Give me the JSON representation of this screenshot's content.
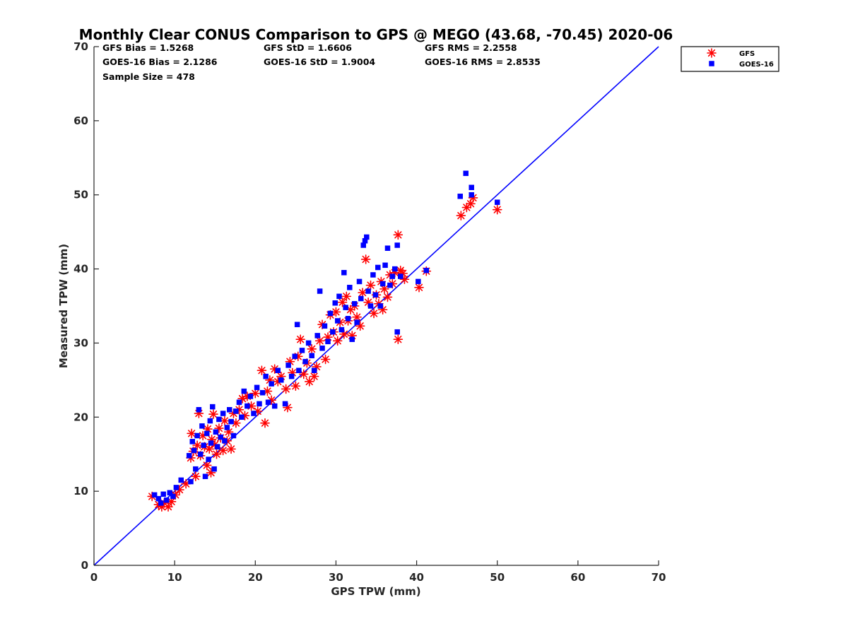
{
  "chart_data": {
    "type": "scatter",
    "title": "Monthly Clear CONUS Comparison to GPS @ MEGO (43.68, -70.45) 2020-06",
    "xlabel": "GPS TPW (mm)",
    "ylabel": "Measured TPW (mm)",
    "xlim": [
      0,
      70
    ],
    "ylim": [
      0,
      70
    ],
    "xticks": [
      0,
      10,
      20,
      30,
      40,
      50,
      60,
      70
    ],
    "yticks": [
      0,
      10,
      20,
      30,
      40,
      50,
      60,
      70
    ],
    "grid": false,
    "legend_position": "top-right",
    "stats": {
      "gfs_bias": "GFS Bias = 1.5268",
      "gfs_std": "GFS StD = 1.6606",
      "gfs_rms": "GFS RMS = 2.2558",
      "goes_bias": "GOES-16 Bias = 2.1286",
      "goes_std": "GOES-16 StD = 1.9004",
      "goes_rms": "GOES-16 RMS = 2.8535",
      "sample_size": "Sample Size = 478"
    },
    "reference_line": {
      "x": [
        0,
        70
      ],
      "y": [
        0,
        70
      ],
      "color": "#0000ff"
    },
    "series": [
      {
        "name": "GFS",
        "marker": "asterisk",
        "color": "#ff0000",
        "points": [
          [
            7.2,
            9.3
          ],
          [
            8.0,
            8.2
          ],
          [
            8.4,
            7.9
          ],
          [
            8.7,
            8.4
          ],
          [
            9.2,
            7.9
          ],
          [
            9.6,
            8.6
          ],
          [
            10.1,
            9.5
          ],
          [
            10.6,
            10.2
          ],
          [
            11.4,
            11.0
          ],
          [
            12.0,
            14.5
          ],
          [
            12.1,
            17.8
          ],
          [
            12.3,
            15.4
          ],
          [
            12.6,
            12.0
          ],
          [
            12.8,
            16.2
          ],
          [
            13.0,
            20.5
          ],
          [
            13.2,
            14.8
          ],
          [
            13.5,
            17.5
          ],
          [
            13.7,
            16.0
          ],
          [
            14.0,
            13.5
          ],
          [
            14.1,
            18.4
          ],
          [
            14.3,
            15.7
          ],
          [
            14.5,
            12.5
          ],
          [
            14.6,
            17.0
          ],
          [
            14.8,
            20.4
          ],
          [
            15.0,
            16.3
          ],
          [
            15.2,
            15.0
          ],
          [
            15.5,
            18.5
          ],
          [
            15.7,
            17.2
          ],
          [
            16.0,
            15.5
          ],
          [
            16.2,
            19.5
          ],
          [
            16.5,
            16.8
          ],
          [
            16.7,
            18.0
          ],
          [
            17.0,
            15.7
          ],
          [
            17.3,
            20.5
          ],
          [
            17.6,
            19.2
          ],
          [
            18.0,
            21.0
          ],
          [
            18.4,
            22.5
          ],
          [
            18.7,
            20.2
          ],
          [
            19.0,
            22.8
          ],
          [
            19.5,
            21.5
          ],
          [
            20.0,
            23.2
          ],
          [
            20.3,
            20.8
          ],
          [
            20.8,
            26.3
          ],
          [
            21.2,
            19.2
          ],
          [
            21.5,
            23.5
          ],
          [
            21.8,
            25.0
          ],
          [
            22.0,
            22.3
          ],
          [
            22.4,
            26.5
          ],
          [
            22.8,
            24.8
          ],
          [
            23.2,
            25.5
          ],
          [
            23.8,
            23.8
          ],
          [
            24.0,
            21.3
          ],
          [
            24.3,
            27.5
          ],
          [
            24.6,
            26.0
          ],
          [
            25.0,
            24.2
          ],
          [
            25.3,
            28.2
          ],
          [
            25.6,
            30.5
          ],
          [
            26.0,
            25.8
          ],
          [
            26.4,
            27.3
          ],
          [
            26.7,
            24.8
          ],
          [
            27.0,
            29.2
          ],
          [
            27.3,
            25.5
          ],
          [
            27.6,
            26.8
          ],
          [
            28.0,
            30.3
          ],
          [
            28.3,
            32.5
          ],
          [
            28.7,
            27.8
          ],
          [
            29.0,
            30.8
          ],
          [
            29.3,
            33.8
          ],
          [
            29.7,
            31.5
          ],
          [
            30.0,
            34.2
          ],
          [
            30.2,
            30.3
          ],
          [
            30.5,
            32.8
          ],
          [
            30.8,
            35.5
          ],
          [
            31.0,
            31.2
          ],
          [
            31.3,
            36.3
          ],
          [
            31.5,
            33.0
          ],
          [
            31.8,
            34.5
          ],
          [
            32.0,
            31.0
          ],
          [
            32.3,
            35.0
          ],
          [
            32.6,
            33.5
          ],
          [
            33.0,
            32.3
          ],
          [
            33.3,
            36.8
          ],
          [
            33.7,
            41.3
          ],
          [
            34.0,
            35.5
          ],
          [
            34.3,
            37.8
          ],
          [
            34.7,
            34.0
          ],
          [
            35.0,
            36.5
          ],
          [
            35.3,
            35.3
          ],
          [
            35.6,
            38.3
          ],
          [
            35.8,
            34.5
          ],
          [
            36.0,
            37.3
          ],
          [
            36.4,
            36.2
          ],
          [
            36.7,
            39.2
          ],
          [
            37.0,
            38.0
          ],
          [
            37.3,
            39.5
          ],
          [
            37.7,
            44.6
          ],
          [
            37.7,
            30.5
          ],
          [
            38.0,
            39.8
          ],
          [
            38.3,
            39.4
          ],
          [
            38.5,
            38.6
          ],
          [
            40.3,
            37.5
          ],
          [
            41.2,
            39.7
          ],
          [
            45.5,
            47.2
          ],
          [
            46.2,
            48.3
          ],
          [
            46.7,
            48.8
          ],
          [
            47.0,
            49.6
          ],
          [
            50.0,
            48.0
          ]
        ]
      },
      {
        "name": "GOES-16",
        "marker": "square",
        "color": "#0000ff",
        "points": [
          [
            7.5,
            9.5
          ],
          [
            8.0,
            9.0
          ],
          [
            8.3,
            8.4
          ],
          [
            8.6,
            9.6
          ],
          [
            9.0,
            8.8
          ],
          [
            9.4,
            9.8
          ],
          [
            9.8,
            9.3
          ],
          [
            10.2,
            10.5
          ],
          [
            10.8,
            11.5
          ],
          [
            11.8,
            14.8
          ],
          [
            12.0,
            11.3
          ],
          [
            12.2,
            16.7
          ],
          [
            12.4,
            15.5
          ],
          [
            12.6,
            13.0
          ],
          [
            12.8,
            17.5
          ],
          [
            13.0,
            21.0
          ],
          [
            13.2,
            15.0
          ],
          [
            13.4,
            18.8
          ],
          [
            13.6,
            16.2
          ],
          [
            13.8,
            12.0
          ],
          [
            14.0,
            17.8
          ],
          [
            14.2,
            14.3
          ],
          [
            14.4,
            19.5
          ],
          [
            14.5,
            16.5
          ],
          [
            14.7,
            21.4
          ],
          [
            14.9,
            13.0
          ],
          [
            15.1,
            18.0
          ],
          [
            15.3,
            16.0
          ],
          [
            15.5,
            19.7
          ],
          [
            15.7,
            17.3
          ],
          [
            16.0,
            20.5
          ],
          [
            16.2,
            16.8
          ],
          [
            16.5,
            18.6
          ],
          [
            16.8,
            21.0
          ],
          [
            17.0,
            19.4
          ],
          [
            17.3,
            17.5
          ],
          [
            17.6,
            20.8
          ],
          [
            18.0,
            22.0
          ],
          [
            18.3,
            20.0
          ],
          [
            18.6,
            23.5
          ],
          [
            19.0,
            21.5
          ],
          [
            19.4,
            22.8
          ],
          [
            19.8,
            20.5
          ],
          [
            20.2,
            24.0
          ],
          [
            20.5,
            21.8
          ],
          [
            20.9,
            23.3
          ],
          [
            21.3,
            25.5
          ],
          [
            21.6,
            22.0
          ],
          [
            22.0,
            24.5
          ],
          [
            22.4,
            21.5
          ],
          [
            22.8,
            26.3
          ],
          [
            23.2,
            25.0
          ],
          [
            23.7,
            21.8
          ],
          [
            24.1,
            27.0
          ],
          [
            24.5,
            25.5
          ],
          [
            24.9,
            28.2
          ],
          [
            25.2,
            32.5
          ],
          [
            25.4,
            26.3
          ],
          [
            25.8,
            29.0
          ],
          [
            26.2,
            27.5
          ],
          [
            26.6,
            30.0
          ],
          [
            27.0,
            28.3
          ],
          [
            27.3,
            26.3
          ],
          [
            27.7,
            31.0
          ],
          [
            28.0,
            37.0
          ],
          [
            28.3,
            29.3
          ],
          [
            28.6,
            32.3
          ],
          [
            29.0,
            30.2
          ],
          [
            29.3,
            34.0
          ],
          [
            29.6,
            31.5
          ],
          [
            29.9,
            35.4
          ],
          [
            30.2,
            33.0
          ],
          [
            30.4,
            36.3
          ],
          [
            30.7,
            31.8
          ],
          [
            31.0,
            39.5
          ],
          [
            31.2,
            34.8
          ],
          [
            31.5,
            33.3
          ],
          [
            31.7,
            37.5
          ],
          [
            32.0,
            30.5
          ],
          [
            32.3,
            35.3
          ],
          [
            32.6,
            32.8
          ],
          [
            32.9,
            38.3
          ],
          [
            33.1,
            36.0
          ],
          [
            33.4,
            43.2
          ],
          [
            33.6,
            43.8
          ],
          [
            33.8,
            44.3
          ],
          [
            34.0,
            37.0
          ],
          [
            34.3,
            35.0
          ],
          [
            34.6,
            39.2
          ],
          [
            34.9,
            36.5
          ],
          [
            35.2,
            40.2
          ],
          [
            35.5,
            35.0
          ],
          [
            35.8,
            38.0
          ],
          [
            36.1,
            40.5
          ],
          [
            36.4,
            42.8
          ],
          [
            36.7,
            37.8
          ],
          [
            37.0,
            39.0
          ],
          [
            37.3,
            40.0
          ],
          [
            37.6,
            43.2
          ],
          [
            37.6,
            31.5
          ],
          [
            38.0,
            39.0
          ],
          [
            40.2,
            38.3
          ],
          [
            41.2,
            39.8
          ],
          [
            45.4,
            49.8
          ],
          [
            46.1,
            52.9
          ],
          [
            46.8,
            51.0
          ],
          [
            46.8,
            50.0
          ],
          [
            50.0,
            49.0
          ]
        ]
      }
    ]
  }
}
